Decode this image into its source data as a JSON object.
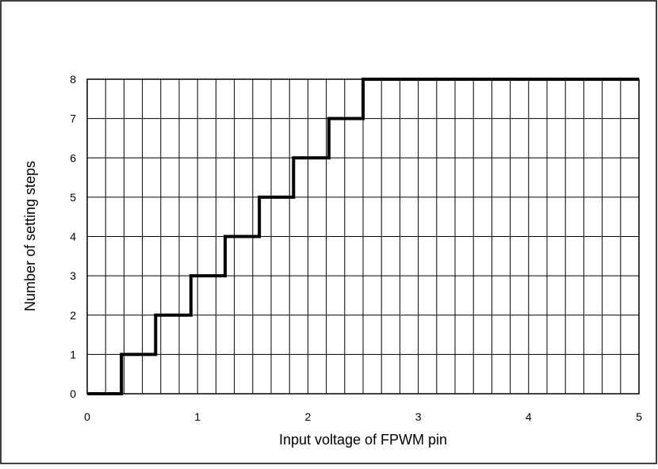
{
  "chart_data": {
    "type": "line",
    "title": "",
    "xlabel": "Input voltage of FPWM pin",
    "ylabel": "Number of setting steps",
    "xlim": [
      0,
      5
    ],
    "ylim": [
      0,
      8
    ],
    "x_ticks": [
      0,
      1,
      2,
      3,
      4,
      5
    ],
    "y_ticks": [
      0,
      1,
      2,
      3,
      4,
      5,
      6,
      7,
      8
    ],
    "x_minor_step": 0.1667,
    "grid": true,
    "legend": "none",
    "line_color": "#000000",
    "series": [
      {
        "step": "post",
        "x": [
          0,
          0.31,
          0.62,
          0.94,
          1.25,
          1.56,
          1.87,
          2.19,
          2.5
        ],
        "y": [
          0,
          1,
          2,
          3,
          4,
          5,
          6,
          7,
          8
        ],
        "x_end": 5
      }
    ]
  }
}
